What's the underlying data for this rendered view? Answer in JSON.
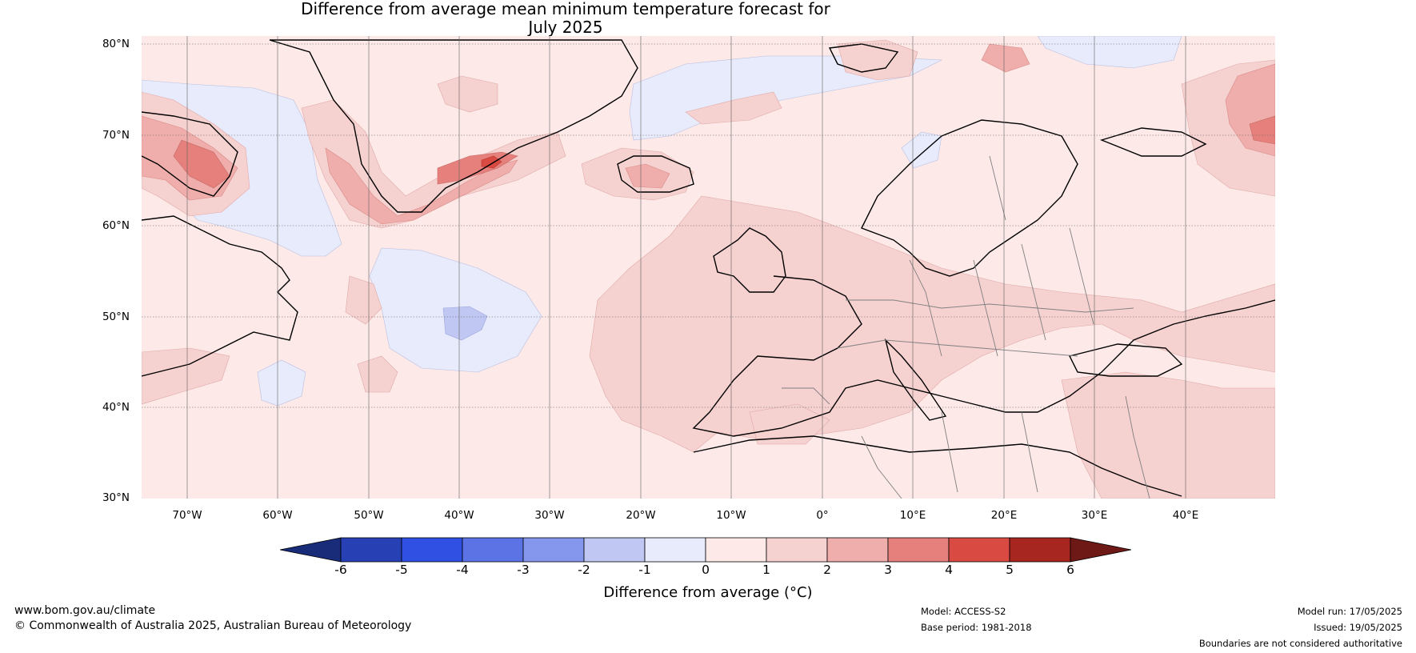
{
  "title": {
    "line1": "Difference from average mean minimum temperature forecast for",
    "line2": "July 2025"
  },
  "map": {
    "lat_labels": [
      "80°N",
      "70°N",
      "60°N",
      "50°N",
      "40°N",
      "30°N"
    ],
    "lon_labels": [
      "70°W",
      "60°W",
      "50°W",
      "40°W",
      "30°W",
      "20°W",
      "10°W",
      "0°",
      "10°E",
      "20°E",
      "30°E",
      "40°E"
    ],
    "colors": {
      "background_anomaly_0_1": "#fce9e8",
      "anomaly_1_2": "#f5d1d0",
      "anomaly_2_3": "#efaeac",
      "anomaly_3_4": "#e5807c",
      "anomaly_4_5": "#d84a42",
      "anomaly_neg1_0": "#e8ebfb",
      "anomaly_neg2_neg1": "#bfc7f2",
      "coastline": "#000000",
      "borders": "#808080"
    }
  },
  "colorbar": {
    "ticks": [
      "-6",
      "-5",
      "-4",
      "-3",
      "-2",
      "-1",
      "0",
      "1",
      "2",
      "3",
      "4",
      "5",
      "6"
    ],
    "colors": [
      "#182c7a",
      "#2740b3",
      "#3050e3",
      "#5c73e6",
      "#8497ec",
      "#bfc7f2",
      "#e8ebfb",
      "#fce9e8",
      "#f5d1d0",
      "#efaeac",
      "#e5807c",
      "#d84a42",
      "#a72620",
      "#6f1916"
    ],
    "label": "Difference from average (°C)"
  },
  "footer": {
    "website": "www.bom.gov.au/climate",
    "copyright": "© Commonwealth of Australia 2025, Australian Bureau of Meteorology",
    "model": "Model: ACCESS-S2",
    "base_period": "Base period: 1981-2018",
    "model_run": "Model run: 17/05/2025",
    "issued": "Issued: 19/05/2025",
    "disclaimer": "Boundaries are not considered authoritative"
  }
}
